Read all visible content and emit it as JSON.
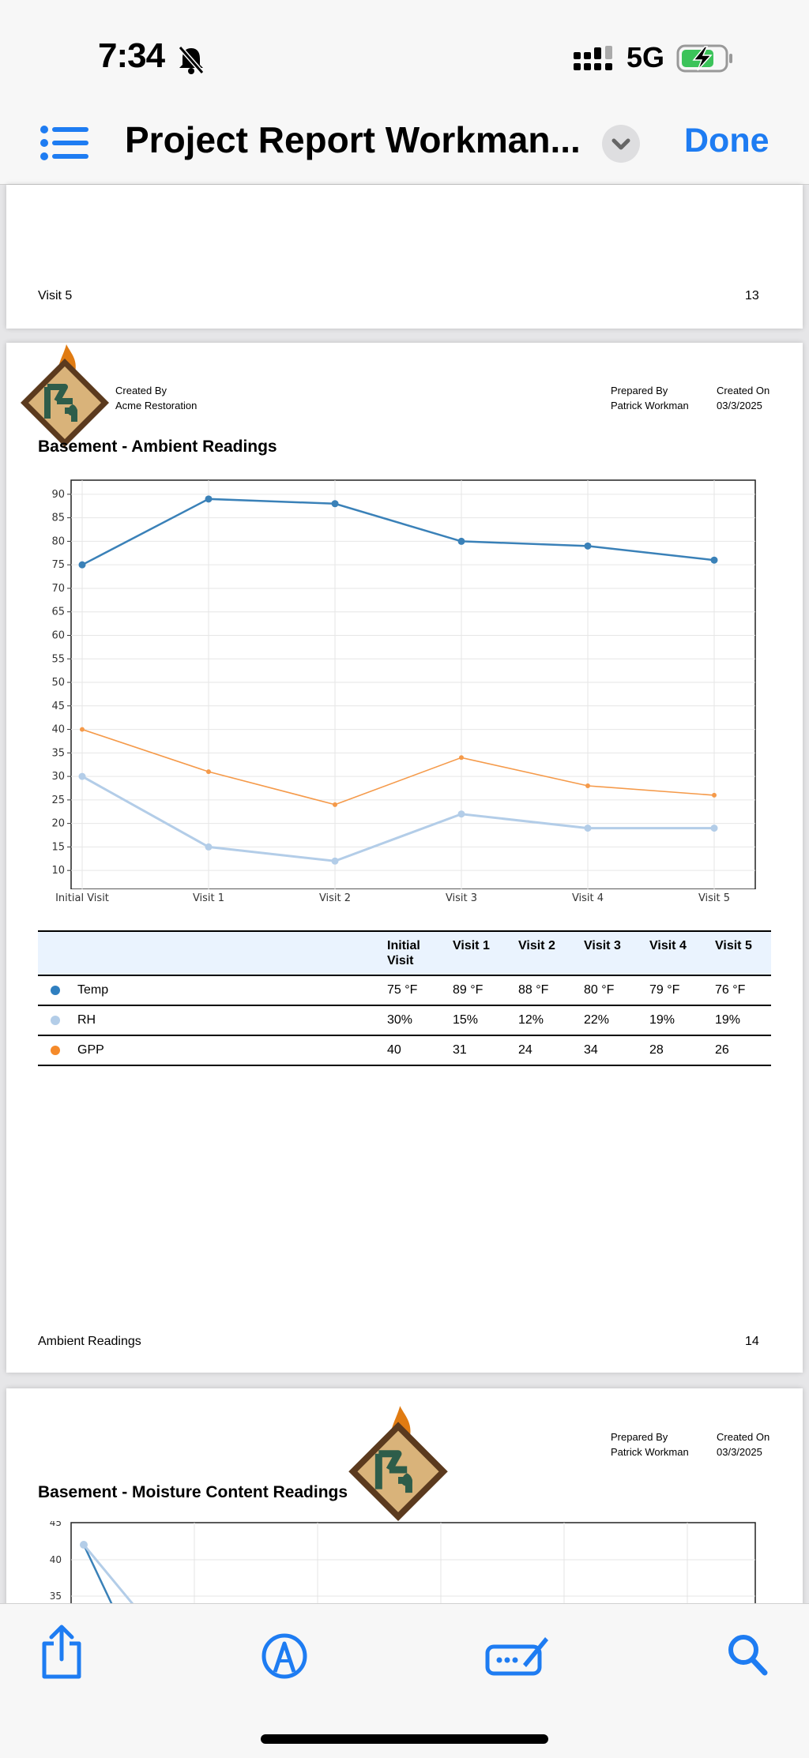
{
  "status_bar": {
    "time": "7:34",
    "network": "5G"
  },
  "nav": {
    "title": "Project Report Workman...",
    "done_label": "Done"
  },
  "page13": {
    "footer_label": "Visit 5",
    "page_number": "13"
  },
  "page14": {
    "created_by_label": "Created By",
    "created_by_value": "Acme Restoration",
    "prepared_by_label": "Prepared By",
    "prepared_by_value": "Patrick Workman",
    "created_on_label": "Created On",
    "created_on_value": "03/3/2025",
    "section_title": "Basement - Ambient Readings",
    "footer_label": "Ambient Readings",
    "page_number": "14"
  },
  "chart_data": {
    "type": "line",
    "title": "Basement - Ambient Readings",
    "categories": [
      "Initial Visit",
      "Visit 1",
      "Visit 2",
      "Visit 3",
      "Visit 4",
      "Visit 5"
    ],
    "y_ticks": [
      10,
      15,
      20,
      25,
      30,
      35,
      40,
      45,
      50,
      55,
      60,
      65,
      70,
      75,
      80,
      85,
      90
    ],
    "ylim": [
      6,
      93
    ],
    "series": [
      {
        "name": "Temp",
        "color": "#3a81b8",
        "values": [
          75,
          89,
          88,
          80,
          79,
          76
        ]
      },
      {
        "name": "GPP",
        "color": "#f59a4a",
        "values": [
          40,
          31,
          24,
          34,
          28,
          26
        ]
      },
      {
        "name": "RH",
        "color": "#b3cde8",
        "values": [
          30,
          15,
          12,
          22,
          19,
          19
        ]
      }
    ]
  },
  "table": {
    "headers": [
      "Initial Visit",
      "Visit 1",
      "Visit 2",
      "Visit 3",
      "Visit 4",
      "Visit 5"
    ],
    "rows": [
      {
        "name": "Temp",
        "color": "#2f7fc0",
        "values": [
          "75 °F",
          "89 °F",
          "88 °F",
          "80 °F",
          "79 °F",
          "76 °F"
        ]
      },
      {
        "name": "RH",
        "color": "#b3cde8",
        "values": [
          "30%",
          "15%",
          "12%",
          "22%",
          "19%",
          "19%"
        ]
      },
      {
        "name": "GPP",
        "color": "#f58a2a",
        "values": [
          "40",
          "31",
          "24",
          "34",
          "28",
          "26"
        ]
      }
    ]
  },
  "page15": {
    "prepared_by_label": "Prepared By",
    "prepared_by_value": "Patrick Workman",
    "created_on_label": "Created On",
    "created_on_value": "03/3/2025",
    "section_title": "Basement - Moisture Content Readings"
  },
  "chart2_data": {
    "type": "line",
    "title": "Basement - Moisture Content Readings",
    "y_ticks": [
      35,
      40,
      45
    ],
    "visible_points": [
      {
        "series": "series-1",
        "x": "first",
        "y": 42
      }
    ]
  },
  "colors": {
    "accent": "#1e7cf2"
  }
}
